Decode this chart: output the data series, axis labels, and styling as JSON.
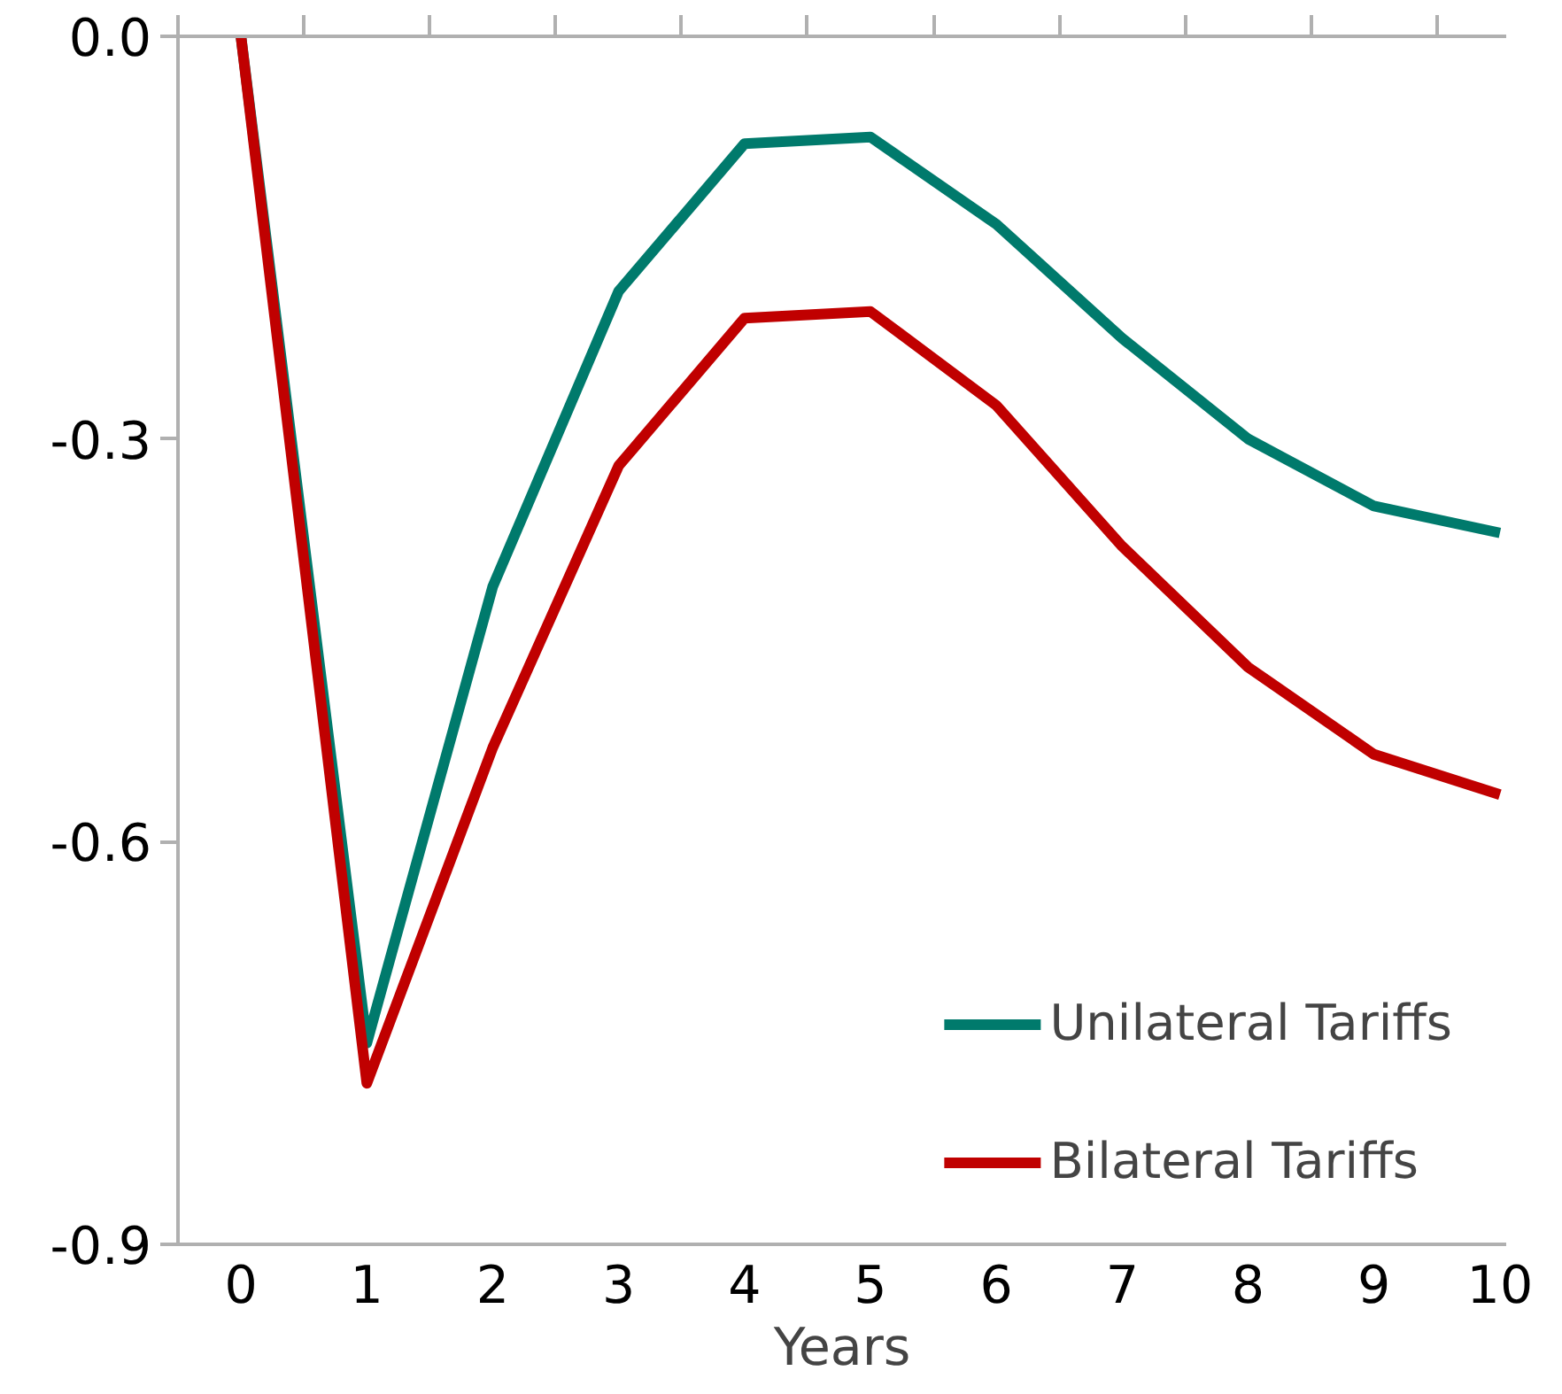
{
  "chart_data": {
    "type": "line",
    "xlabel": "Years",
    "categories": [
      "0",
      "1",
      "2",
      "3",
      "4",
      "5",
      "6",
      "7",
      "8",
      "9",
      "10"
    ],
    "ylim": [
      -0.9,
      0.0
    ],
    "yticks": [
      {
        "value": 0.0,
        "label": "0.0"
      },
      {
        "value": -0.3,
        "label": "-0.3"
      },
      {
        "value": -0.6,
        "label": "-0.6"
      },
      {
        "value": -0.9,
        "label": "-0.9"
      }
    ],
    "series": [
      {
        "name": "Unilateral Tariffs",
        "color": "#007a6c",
        "values": [
          0,
          -0.75,
          -0.41,
          -0.19,
          -0.08,
          -0.075,
          -0.14,
          -0.225,
          -0.3,
          -0.35,
          -0.37
        ]
      },
      {
        "name": "Bilateral Tariffs",
        "color": "#c00000",
        "values": [
          0,
          -0.78,
          -0.53,
          -0.32,
          -0.21,
          -0.205,
          -0.275,
          -0.38,
          -0.47,
          -0.535,
          -0.565
        ]
      }
    ],
    "grid": false,
    "legend": "bottom right",
    "marker": "none",
    "line_style": "solid"
  }
}
